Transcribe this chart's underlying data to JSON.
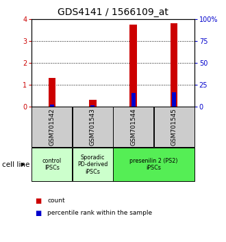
{
  "title": "GDS4141 / 1566109_at",
  "samples": [
    "GSM701542",
    "GSM701543",
    "GSM701544",
    "GSM701545"
  ],
  "red_values": [
    1.3,
    0.3,
    3.77,
    3.82
  ],
  "blue_values": [
    2.0,
    1.0,
    15.5,
    16.5
  ],
  "ylim_left": [
    0,
    4
  ],
  "ylim_right": [
    0,
    100
  ],
  "yticks_left": [
    0,
    1,
    2,
    3,
    4
  ],
  "yticks_right": [
    0,
    25,
    50,
    75,
    100
  ],
  "yticklabels_right": [
    "0",
    "25",
    "50",
    "75",
    "100%"
  ],
  "red_color": "#cc0000",
  "blue_color": "#0000cc",
  "title_fontsize": 10,
  "tick_fontsize": 7,
  "sample_bg_color": "#cccccc",
  "group_info": [
    {
      "start": 0,
      "end": 0,
      "color": "#ccffcc",
      "label": "control\nIPSCs"
    },
    {
      "start": 1,
      "end": 1,
      "color": "#ccffcc",
      "label": "Sporadic\nPD-derived\niPSCs"
    },
    {
      "start": 2,
      "end": 3,
      "color": "#55ee55",
      "label": "presenilin 2 (PS2)\niPSCs"
    }
  ],
  "legend_red_label": "count",
  "legend_blue_label": "percentile rank within the sample",
  "cell_line_label": "cell line"
}
